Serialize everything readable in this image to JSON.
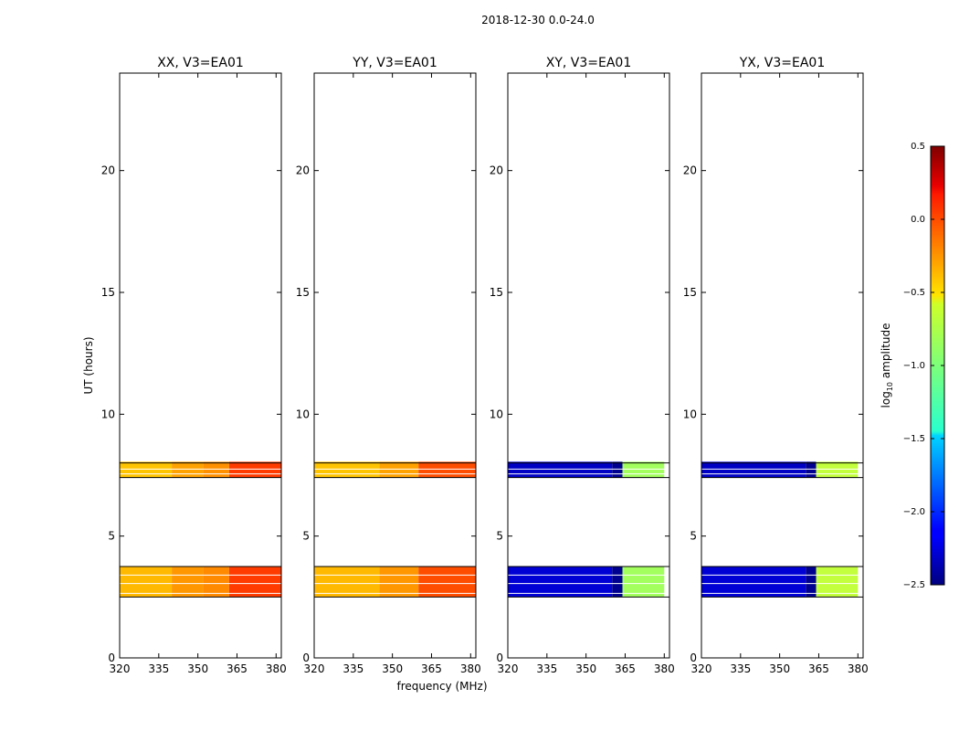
{
  "figure": {
    "suptitle": "2018-12-30 0.0-24.0",
    "xlabel": "frequency (MHz)",
    "ylabel": "UT (hours)",
    "colorbar_label_main": "log",
    "colorbar_label_sub": "10",
    "colorbar_label_tail": " amplitude"
  },
  "chart_data": [
    {
      "type": "heatmap",
      "title": "XX, V3=EA01",
      "xlim": [
        320,
        382
      ],
      "ylim": [
        0,
        24
      ],
      "xticks": [
        320,
        335,
        350,
        365,
        380
      ],
      "yticks": [
        0,
        5,
        10,
        15,
        20
      ],
      "colormap": "jet",
      "bands": [
        {
          "t_start": 7.4,
          "t_end": 8.05,
          "rows": [
            8.0,
            7.75,
            7.55,
            7.4
          ],
          "segments": [
            {
              "f_start": 320,
              "f_end": 340,
              "value": -0.45
            },
            {
              "f_start": 340,
              "f_end": 352,
              "value": -0.35
            },
            {
              "f_start": 352,
              "f_end": 362,
              "value": -0.3
            },
            {
              "f_start": 362,
              "f_end": 382,
              "value": -0.05
            }
          ]
        },
        {
          "t_start": 2.5,
          "t_end": 3.75,
          "rows": [
            3.75,
            3.4,
            3.05,
            2.65,
            2.5
          ],
          "segments": [
            {
              "f_start": 320,
              "f_end": 340,
              "value": -0.42
            },
            {
              "f_start": 340,
              "f_end": 352,
              "value": -0.32
            },
            {
              "f_start": 352,
              "f_end": 362,
              "value": -0.28
            },
            {
              "f_start": 362,
              "f_end": 382,
              "value": -0.05
            }
          ]
        }
      ]
    },
    {
      "type": "heatmap",
      "title": "YY, V3=EA01",
      "xlim": [
        320,
        382
      ],
      "ylim": [
        0,
        24
      ],
      "xticks": [
        320,
        335,
        350,
        365,
        380
      ],
      "yticks": [
        0,
        5,
        10,
        15,
        20
      ],
      "colormap": "jet",
      "bands": [
        {
          "t_start": 7.4,
          "t_end": 8.05,
          "rows": [
            8.0,
            7.75,
            7.55,
            7.4
          ],
          "segments": [
            {
              "f_start": 320,
              "f_end": 345,
              "value": -0.45
            },
            {
              "f_start": 345,
              "f_end": 360,
              "value": -0.35
            },
            {
              "f_start": 360,
              "f_end": 382,
              "value": -0.1
            }
          ]
        },
        {
          "t_start": 2.5,
          "t_end": 3.75,
          "rows": [
            3.75,
            3.4,
            3.05,
            2.65,
            2.5
          ],
          "segments": [
            {
              "f_start": 320,
              "f_end": 345,
              "value": -0.42
            },
            {
              "f_start": 345,
              "f_end": 360,
              "value": -0.32
            },
            {
              "f_start": 360,
              "f_end": 382,
              "value": -0.1
            }
          ]
        }
      ]
    },
    {
      "type": "heatmap",
      "title": "XY, V3=EA01",
      "xlim": [
        320,
        382
      ],
      "ylim": [
        0,
        24
      ],
      "xticks": [
        320,
        335,
        350,
        365,
        380
      ],
      "yticks": [
        0,
        5,
        10,
        15,
        20
      ],
      "colormap": "jet",
      "bands": [
        {
          "t_start": 7.4,
          "t_end": 8.05,
          "rows": [
            8.0,
            7.75,
            7.55,
            7.4
          ],
          "segments": [
            {
              "f_start": 320,
              "f_end": 360,
              "value": -2.3
            },
            {
              "f_start": 360,
              "f_end": 364,
              "value": -2.45
            },
            {
              "f_start": 364,
              "f_end": 380,
              "value": -0.9
            }
          ]
        },
        {
          "t_start": 2.5,
          "t_end": 3.75,
          "rows": [
            3.75,
            3.4,
            3.05,
            2.65,
            2.5
          ],
          "segments": [
            {
              "f_start": 320,
              "f_end": 360,
              "value": -2.25
            },
            {
              "f_start": 360,
              "f_end": 364,
              "value": -2.45
            },
            {
              "f_start": 364,
              "f_end": 380,
              "value": -0.9
            }
          ]
        }
      ]
    },
    {
      "type": "heatmap",
      "title": "YX, V3=EA01",
      "xlim": [
        320,
        382
      ],
      "ylim": [
        0,
        24
      ],
      "xticks": [
        320,
        335,
        350,
        365,
        380
      ],
      "yticks": [
        0,
        5,
        10,
        15,
        20
      ],
      "colormap": "jet",
      "bands": [
        {
          "t_start": 7.4,
          "t_end": 8.05,
          "rows": [
            8.0,
            7.75,
            7.55,
            7.4
          ],
          "segments": [
            {
              "f_start": 320,
              "f_end": 360,
              "value": -2.3
            },
            {
              "f_start": 360,
              "f_end": 364,
              "value": -2.45
            },
            {
              "f_start": 364,
              "f_end": 380,
              "value": -0.8
            }
          ]
        },
        {
          "t_start": 2.5,
          "t_end": 3.75,
          "rows": [
            3.75,
            3.4,
            3.05,
            2.65,
            2.5
          ],
          "segments": [
            {
              "f_start": 320,
              "f_end": 360,
              "value": -2.25
            },
            {
              "f_start": 360,
              "f_end": 364,
              "value": -2.45
            },
            {
              "f_start": 364,
              "f_end": 380,
              "value": -0.8
            }
          ]
        }
      ]
    }
  ],
  "colorbar": {
    "vmin": -2.5,
    "vmax": 0.5,
    "ticks": [
      0.5,
      0.0,
      -0.5,
      -1.0,
      -1.5,
      -2.0,
      -2.5
    ],
    "tick_labels": [
      "0.5",
      "0.0",
      "−0.5",
      "−1.0",
      "−1.5",
      "−2.0",
      "−2.5"
    ]
  }
}
